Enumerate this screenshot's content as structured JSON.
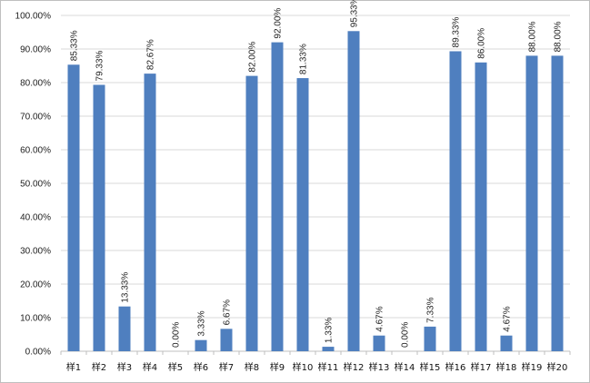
{
  "chart_data": {
    "type": "bar",
    "title": "",
    "xlabel": "",
    "ylabel": "",
    "ylim": [
      0,
      100
    ],
    "y_tick_step": 10,
    "y_format": "percent_2dp",
    "grid": true,
    "legend": "none",
    "colors": {
      "bar": "#4f7fbf",
      "grid": "#d9d9d9",
      "axis": "#bfbfbf"
    },
    "y_tick_labels": [
      "0.00%",
      "10.00%",
      "20.00%",
      "30.00%",
      "40.00%",
      "50.00%",
      "60.00%",
      "70.00%",
      "80.00%",
      "90.00%",
      "100.00%"
    ],
    "categories": [
      "样1",
      "样2",
      "样3",
      "样4",
      "样5",
      "样6",
      "样7",
      "样8",
      "样9",
      "样10",
      "样11",
      "样12",
      "样13",
      "样14",
      "样15",
      "样16",
      "样17",
      "样18",
      "样19",
      "样20"
    ],
    "values": [
      85.33,
      79.33,
      13.33,
      82.67,
      0.0,
      3.33,
      6.67,
      82.0,
      92.0,
      81.33,
      1.33,
      95.33,
      4.67,
      0.0,
      7.33,
      89.33,
      86.0,
      4.67,
      88.0,
      88.0
    ],
    "data_labels": [
      "85.33%",
      "79.33%",
      "13.33%",
      "82.67%",
      "0.00%",
      "3.33%",
      "6.67%",
      "82.00%",
      "92.00%",
      "81.33%",
      "1.33%",
      "95.33%",
      "4.67%",
      "0.00%",
      "7.33%",
      "89.33%",
      "86.00%",
      "4.67%",
      "88.00%",
      "88.00%"
    ]
  }
}
